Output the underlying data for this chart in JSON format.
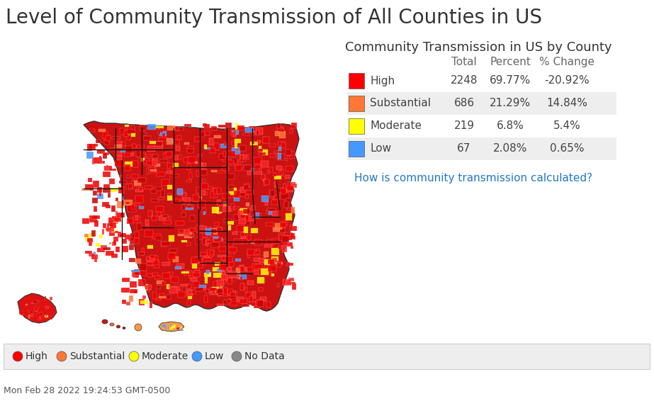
{
  "title": "Level of Community Transmission of All Counties in US",
  "title_fontsize": 20,
  "title_color": "#333333",
  "table_title": "Community Transmission in US by County",
  "table_title_fontsize": 13,
  "table_headers": [
    "Total",
    "Percent",
    "% Change"
  ],
  "table_rows": [
    {
      "label": "High",
      "color": "#ff0000",
      "total": "2248",
      "percent": "69.77%",
      "change": "-20.92%"
    },
    {
      "label": "Substantial",
      "color": "#ff7733",
      "total": "686",
      "percent": "21.29%",
      "change": "14.84%"
    },
    {
      "label": "Moderate",
      "color": "#ffff00",
      "total": "219",
      "percent": "6.8%",
      "change": "5.4%"
    },
    {
      "label": "Low",
      "color": "#4499ff",
      "total": "67",
      "percent": "2.08%",
      "change": "0.65%"
    }
  ],
  "link_text": "How is community transmission calculated?",
  "link_color": "#2277cc",
  "link_fontsize": 11,
  "legend_items": [
    {
      "label": "High",
      "color": "#ff0000"
    },
    {
      "label": "Substantial",
      "color": "#ff7733"
    },
    {
      "label": "Moderate",
      "color": "#ffff00"
    },
    {
      "label": "Low",
      "color": "#4499ff"
    },
    {
      "label": "No Data",
      "color": "#888888"
    }
  ],
  "legend_bg": "#eeeeee",
  "legend_border": "#cccccc",
  "footer_text": "Mon Feb 28 2022 19:24:53 GMT-0500",
  "footer_fontsize": 9,
  "bg_color": "#ffffff",
  "table_alt_row_color": "#eeeeee",
  "table_row_color": "#ffffff",
  "table_fontsize": 11,
  "table_header_fontsize": 11,
  "table_header_color": "#666666",
  "table_text_color": "#444444"
}
